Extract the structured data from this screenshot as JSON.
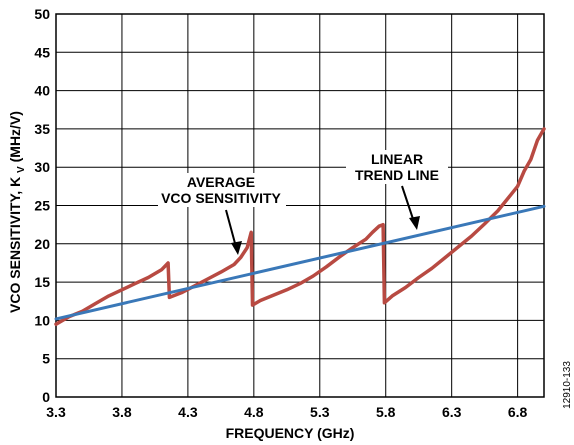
{
  "chart_data": {
    "type": "line",
    "xlabel": "FREQUENCY (GHz)",
    "ylabel_main": "VCO SENSITIVITY, K",
    "ylabel_sub": "V",
    "ylabel_unit": " (MHz/V)",
    "xlim": [
      3.3,
      7.0
    ],
    "ylim": [
      0,
      50
    ],
    "x_ticks": [
      "3.3",
      "3.8",
      "4.3",
      "4.8",
      "5.3",
      "5.8",
      "6.3",
      "6.8"
    ],
    "y_ticks": [
      "0",
      "5",
      "10",
      "15",
      "20",
      "25",
      "30",
      "35",
      "40",
      "45",
      "50"
    ],
    "grid": true,
    "series": [
      {
        "color": "#b84a42",
        "x": [
          3.3,
          3.4,
          3.5,
          3.6,
          3.7,
          3.8,
          3.9,
          4.0,
          4.1,
          4.15,
          4.16,
          4.25,
          4.35,
          4.45,
          4.55,
          4.65,
          4.7,
          4.75,
          4.78,
          4.79,
          4.85,
          4.95,
          5.05,
          5.15,
          5.25,
          5.35,
          5.45,
          5.55,
          5.65,
          5.7,
          5.75,
          5.78,
          5.79,
          5.85,
          5.95,
          6.05,
          6.15,
          6.25,
          6.35,
          6.45,
          6.55,
          6.65,
          6.72,
          6.8,
          6.85,
          6.9,
          6.95,
          7.0
        ],
        "values": [
          9.5,
          10.5,
          11.2,
          12.2,
          13.2,
          14.0,
          14.8,
          15.6,
          16.6,
          17.5,
          13.0,
          13.6,
          14.5,
          15.4,
          16.3,
          17.3,
          18.2,
          19.5,
          21.5,
          12.0,
          12.6,
          13.3,
          14.0,
          14.8,
          15.8,
          17.0,
          18.3,
          19.5,
          20.6,
          21.5,
          22.3,
          22.5,
          12.3,
          13.2,
          14.3,
          15.6,
          16.8,
          18.2,
          19.6,
          21.0,
          22.6,
          24.3,
          25.8,
          27.5,
          29.5,
          31.0,
          33.5,
          35.0
        ]
      },
      {
        "color": "#3a78b8",
        "x": [
          3.3,
          7.0
        ],
        "values": [
          10.2,
          24.9
        ]
      }
    ],
    "annotations": [
      {
        "lines": [
          "AVERAGE",
          "VCO SENSITIVITY"
        ]
      },
      {
        "lines": [
          "LINEAR",
          "TREND LINE"
        ]
      }
    ]
  },
  "figure_id": "12910-133"
}
